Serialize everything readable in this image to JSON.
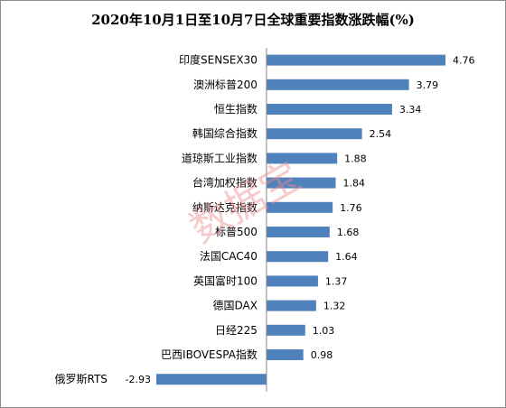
{
  "chart_data": {
    "type": "bar",
    "orientation": "horizontal",
    "title": "2020年10月1日至10月7日全球重要指数涨跌幅(%)",
    "xlabel": "",
    "ylabel": "",
    "categories": [
      "印度SENSEX30",
      "澳洲标普200",
      "恒生指数",
      "韩国综合指数",
      "道琼斯工业指数",
      "台湾加权指数",
      "纳斯达克指数",
      "标普500",
      "法国CAC40",
      "英国富时100",
      "德国DAX",
      "日经225",
      "巴西IBOVESPA指数",
      "俄罗斯RTS"
    ],
    "values": [
      4.76,
      3.79,
      3.34,
      2.54,
      1.88,
      1.84,
      1.76,
      1.68,
      1.64,
      1.37,
      1.32,
      1.03,
      0.98,
      -2.93
    ],
    "value_labels": [
      "4.76",
      "3.79",
      "3.34",
      "2.54",
      "1.88",
      "1.84",
      "1.76",
      "1.68",
      "1.64",
      "1.37",
      "1.32",
      "1.03",
      "0.98",
      "-2.93"
    ],
    "xlim": [
      -2.93,
      4.76
    ],
    "grid": false,
    "legend": "none",
    "bar_color": "#4f81bd"
  },
  "watermark": "数据宝"
}
